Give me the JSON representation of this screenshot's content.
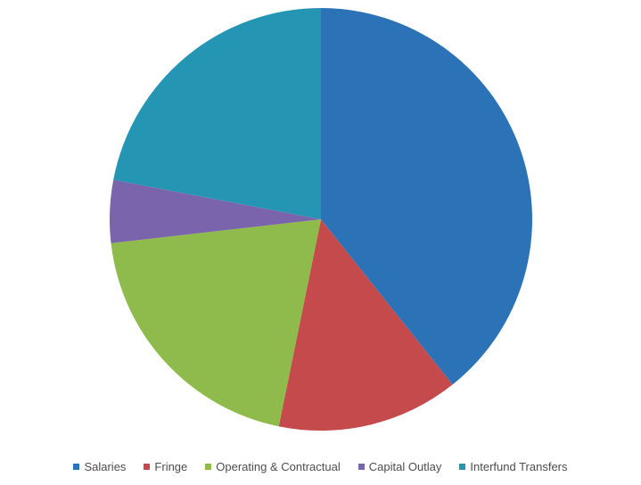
{
  "chart_data": {
    "type": "pie",
    "categories": [
      "Salaries",
      "Fringe",
      "Operating & Contractual",
      "Capital Outlay",
      "Interfund Transfers"
    ],
    "values": [
      39.3,
      13.9,
      20.0,
      4.8,
      22.0
    ],
    "unit": "percent (estimated)",
    "start_angle_deg": 0,
    "direction": "clockwise",
    "colors": [
      "#2b73b6",
      "#c54a4c",
      "#8fbb4c",
      "#7a64ab",
      "#2495b3"
    ],
    "title": "",
    "legend_position": "bottom"
  }
}
